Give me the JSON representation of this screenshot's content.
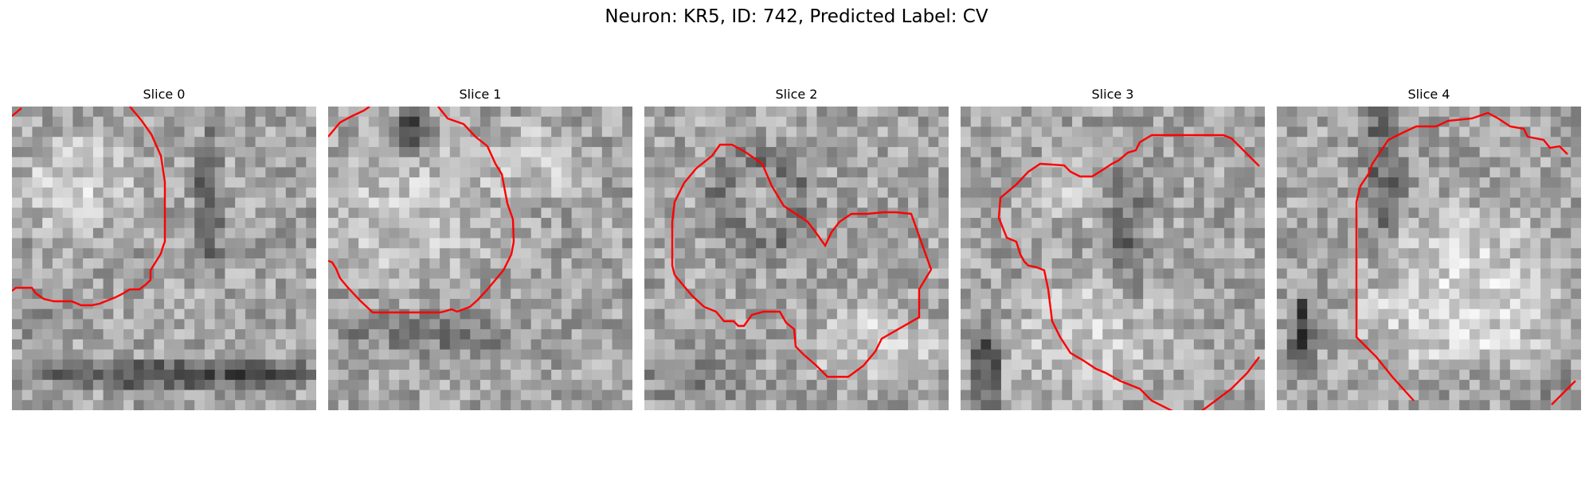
{
  "figure": {
    "title": "Neuron: KR5, ID: 742, Predicted Label: CV",
    "contour_color": "#ff0000"
  },
  "slices": [
    {
      "title": "Slice 0",
      "seed": 11
    },
    {
      "title": "Slice 1",
      "seed": 29
    },
    {
      "title": "Slice 2",
      "seed": 47
    },
    {
      "title": "Slice 3",
      "seed": 83
    },
    {
      "title": "Slice 4",
      "seed": 131
    }
  ]
}
